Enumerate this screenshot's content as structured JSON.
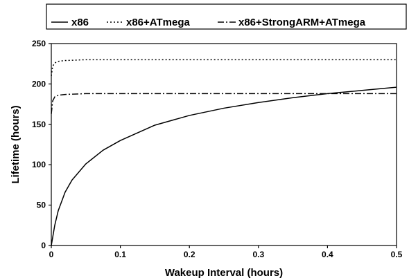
{
  "chart_data": {
    "type": "line",
    "xlabel": "Wakeup Interval (hours)",
    "ylabel": "Lifetime (hours)",
    "xlim": [
      0,
      0.5
    ],
    "ylim": [
      0,
      250
    ],
    "x_ticks": [
      "0",
      "0.1",
      "0.2",
      "0.3",
      "0.4",
      "0.5"
    ],
    "y_ticks": [
      "0",
      "50",
      "100",
      "150",
      "200",
      "250"
    ],
    "grid": false,
    "legend_placement": "top",
    "series": [
      {
        "name": "x86",
        "style": "solid",
        "color": "#000000",
        "x": [
          0,
          0.005,
          0.01,
          0.02,
          0.03,
          0.05,
          0.075,
          0.1,
          0.15,
          0.2,
          0.25,
          0.3,
          0.35,
          0.4,
          0.45,
          0.5
        ],
        "y": [
          0,
          25,
          43,
          66,
          81,
          101,
          118,
          130,
          149,
          161,
          170,
          177,
          183,
          188,
          192,
          196
        ]
      },
      {
        "name": "x86+ATmega",
        "style": "dotted",
        "color": "#000000",
        "x": [
          0,
          0.002,
          0.005,
          0.01,
          0.02,
          0.05,
          0.1,
          0.2,
          0.3,
          0.4,
          0.5
        ],
        "y": [
          210,
          222,
          226,
          228,
          229,
          230,
          230,
          230,
          230,
          230,
          230
        ]
      },
      {
        "name": "x86+StrongARM+ATmega",
        "style": "dash-dot",
        "color": "#000000",
        "x": [
          0,
          0.002,
          0.005,
          0.01,
          0.02,
          0.05,
          0.1,
          0.2,
          0.3,
          0.4,
          0.5
        ],
        "y": [
          163,
          179,
          184,
          186,
          187,
          188,
          188,
          188,
          188,
          188,
          188
        ]
      }
    ]
  }
}
